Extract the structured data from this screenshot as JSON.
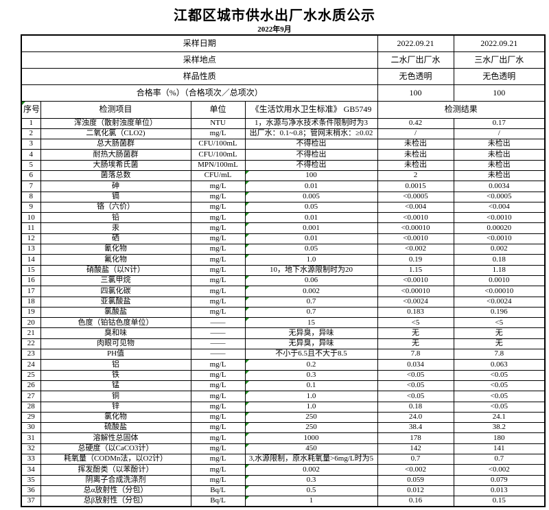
{
  "page": {
    "title": "江都区城市供水出厂水水质公示",
    "subtitle": "2022年9月"
  },
  "colors": {
    "flag_green": "#1e8a1e",
    "border": "#000000",
    "text": "#000000"
  },
  "summary": {
    "rows": [
      {
        "label": "采样日期",
        "plant2": "2022.09.21",
        "plant3": "2022.09.21"
      },
      {
        "label": "采样地点",
        "plant2": "二水厂出厂水",
        "plant3": "三水厂出厂水"
      },
      {
        "label": "样品性质",
        "plant2": "无色透明",
        "plant3": "无色透明"
      },
      {
        "label": "合格率（%）（合格项次／总项次）",
        "plant2": "100",
        "plant3": "100"
      }
    ]
  },
  "table": {
    "headers": {
      "no": "序号",
      "item": "检测项目",
      "unit": "单位",
      "standard": "《生活饮用水卫生标准》 GB5749",
      "result": "检测结果"
    },
    "rows": [
      {
        "no": "1",
        "item": "浑浊度（散射浊度单位）",
        "unit": "NTU",
        "standard": "1，水源与净水技术条件限制时为3",
        "r2": "0.42",
        "r3": "0.17",
        "flag": false
      },
      {
        "no": "2",
        "item": "二氧化氯（CLO2)",
        "unit": "mg/L",
        "standard": "出厂水：0.1~0.8；管网末梢水：≥0.02",
        "r2": "/",
        "r3": "/",
        "flag": false
      },
      {
        "no": "3",
        "item": "总大肠菌群",
        "unit": "CFU/100mL",
        "standard": "不得检出",
        "r2": "未检出",
        "r3": "未检出",
        "flag": false
      },
      {
        "no": "4",
        "item": "耐热大肠菌群",
        "unit": "CFU/100mL",
        "standard": "不得检出",
        "r2": "未检出",
        "r3": "未检出",
        "flag": false
      },
      {
        "no": "5",
        "item": "大肠埃希氏菌",
        "unit": "MPN/100mL",
        "standard": "不得检出",
        "r2": "未检出",
        "r3": "未检出",
        "flag": false
      },
      {
        "no": "6",
        "item": "菌落总数",
        "unit": "CFU/mL",
        "standard": "100",
        "r2": "2",
        "r3": "未检出",
        "flag": true
      },
      {
        "no": "7",
        "item": "砷",
        "unit": "mg/L",
        "standard": "0.01",
        "r2": "0.0015",
        "r3": "0.0034",
        "flag": true
      },
      {
        "no": "8",
        "item": "镉",
        "unit": "mg/L",
        "standard": "0.005",
        "r2": "<0.0005",
        "r3": "<0.0005",
        "flag": true
      },
      {
        "no": "9",
        "item": "铬（六价）",
        "unit": "mg/L",
        "standard": "0.05",
        "r2": "<0.004",
        "r3": "<0.004",
        "flag": true
      },
      {
        "no": "10",
        "item": "铅",
        "unit": "mg/L",
        "standard": "0.01",
        "r2": "<0.0010",
        "r3": "<0.0010",
        "flag": true
      },
      {
        "no": "11",
        "item": "汞",
        "unit": "mg/L",
        "standard": "0.001",
        "r2": "<0.00010",
        "r3": "0.00020",
        "flag": true
      },
      {
        "no": "12",
        "item": "硒",
        "unit": "mg/L",
        "standard": "0.01",
        "r2": "<0.0010",
        "r3": "<0.0010",
        "flag": true
      },
      {
        "no": "13",
        "item": "氰化物",
        "unit": "mg/L",
        "standard": "0.05",
        "r2": "<0.002",
        "r3": "0.002",
        "flag": true
      },
      {
        "no": "14",
        "item": "氟化物",
        "unit": "mg/L",
        "standard": "1.0",
        "r2": "0.19",
        "r3": "0.18",
        "flag": true
      },
      {
        "no": "15",
        "item": "硝酸盐（以N计）",
        "unit": "mg/L",
        "standard": "10，地下水源限制时为20",
        "r2": "1.15",
        "r3": "1.18",
        "flag": false
      },
      {
        "no": "16",
        "item": "三氯甲烷",
        "unit": "mg/L",
        "standard": "0.06",
        "r2": "<0.0010",
        "r3": "0.0010",
        "flag": true
      },
      {
        "no": "17",
        "item": "四氯化碳",
        "unit": "mg/L",
        "standard": "0.002",
        "r2": "<0.00010",
        "r3": "<0.00010",
        "flag": true
      },
      {
        "no": "18",
        "item": "亚氯酸盐",
        "unit": "mg/L",
        "standard": "0.7",
        "r2": "<0.0024",
        "r3": "<0.0024",
        "flag": true
      },
      {
        "no": "19",
        "item": "氯酸盐",
        "unit": "mg/L",
        "standard": "0.7",
        "r2": "0.183",
        "r3": "0.196",
        "flag": true
      },
      {
        "no": "20",
        "item": "色度（铂钴色度单位）",
        "unit": "——",
        "standard": "15",
        "r2": "<5",
        "r3": "<5",
        "flag": true
      },
      {
        "no": "21",
        "item": "臭和味",
        "unit": "——",
        "standard": "无异臭，异味",
        "r2": "无",
        "r3": "无",
        "flag": false
      },
      {
        "no": "22",
        "item": "肉眼可见物",
        "unit": "——",
        "standard": "无异臭，异味",
        "r2": "无",
        "r3": "无",
        "flag": false
      },
      {
        "no": "23",
        "item": "PH值",
        "unit": "——",
        "standard": "不小于6.5且不大于8.5",
        "r2": "7.8",
        "r3": "7.8",
        "flag": false
      },
      {
        "no": "24",
        "item": "铝",
        "unit": "mg/L",
        "standard": "0.2",
        "r2": "0.034",
        "r3": "0.063",
        "flag": true
      },
      {
        "no": "25",
        "item": "铁",
        "unit": "mg/L",
        "standard": "0.3",
        "r2": "<0.05",
        "r3": "<0.05",
        "flag": true
      },
      {
        "no": "26",
        "item": "锰",
        "unit": "mg/L",
        "standard": "0.1",
        "r2": "<0.05",
        "r3": "<0.05",
        "flag": true
      },
      {
        "no": "27",
        "item": "铜",
        "unit": "mg/L",
        "standard": "1.0",
        "r2": "<0.05",
        "r3": "<0.05",
        "flag": true
      },
      {
        "no": "28",
        "item": "锌",
        "unit": "mg/L",
        "standard": "1.0",
        "r2": "0.18",
        "r3": "<0.05",
        "flag": true
      },
      {
        "no": "29",
        "item": "氯化物",
        "unit": "mg/L",
        "standard": "250",
        "r2": "24.0",
        "r3": "24.1",
        "flag": true
      },
      {
        "no": "30",
        "item": "硫酸盐",
        "unit": "mg/L",
        "standard": "250",
        "r2": "38.4",
        "r3": "38.2",
        "flag": true
      },
      {
        "no": "31",
        "item": "溶解性总固体",
        "unit": "mg/L",
        "standard": "1000",
        "r2": "178",
        "r3": "180",
        "flag": true
      },
      {
        "no": "32",
        "item": "总硬度（以CaCO3计）",
        "unit": "mg/L",
        "standard": "450",
        "r2": "142",
        "r3": "141",
        "flag": true
      },
      {
        "no": "33",
        "item": "耗氧量（CODMn法，以O2计）",
        "unit": "mg/L",
        "standard": "3,水源限制，原水耗氧量>6mg/L时为5",
        "r2": "0.7",
        "r3": "0.7",
        "flag": false
      },
      {
        "no": "34",
        "item": "挥发酚类（以苯酚计）",
        "unit": "mg/L",
        "standard": "0.002",
        "r2": "<0.002",
        "r3": "<0.002",
        "flag": true
      },
      {
        "no": "35",
        "item": "阴离子合成洗涤剂",
        "unit": "mg/L",
        "standard": "0.3",
        "r2": "0.059",
        "r3": "0.079",
        "flag": true
      },
      {
        "no": "36",
        "item": "总α放射性（分包）",
        "unit": "Bq/L",
        "standard": "0.5",
        "r2": "0.012",
        "r3": "0.013",
        "flag": true
      },
      {
        "no": "37",
        "item": "总β放射性（分包）",
        "unit": "Bq/L",
        "standard": "1",
        "r2": "0.16",
        "r3": "0.15",
        "flag": true
      }
    ]
  }
}
